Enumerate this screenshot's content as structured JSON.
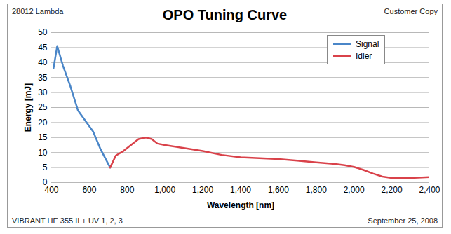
{
  "chart_data": {
    "type": "line",
    "title": "OPO Tuning Curve",
    "annotations": [
      "28012 Lambda",
      "Customer Copy",
      "VIBRANT HE 355 II + UV 1, 2, 3",
      "September 25, 2008"
    ],
    "x_label": "Wavelength [nm]",
    "y_label": "Energy [mJ]",
    "x": [
      410,
      430,
      460,
      500,
      540,
      580,
      620,
      660,
      710,
      740,
      780,
      820,
      860,
      900,
      930,
      960,
      1000,
      1100,
      1200,
      1300,
      1400,
      1500,
      1600,
      1700,
      1800,
      1900,
      1950,
      2000,
      2050,
      2100,
      2150,
      2200,
      2300,
      2400
    ],
    "series": [
      {
        "name": "Signal",
        "color": "#4a86c8",
        "values": [
          38,
          45.5,
          39,
          32,
          24,
          20.5,
          17,
          11,
          5,
          null,
          null,
          null,
          null,
          null,
          null,
          null,
          null,
          null,
          null,
          null,
          null,
          null,
          null,
          null,
          null,
          null,
          null,
          null,
          null,
          null,
          null,
          null,
          null,
          null
        ]
      },
      {
        "name": "Idler",
        "color": "#d9424a",
        "values": [
          null,
          null,
          null,
          null,
          null,
          null,
          null,
          null,
          5,
          9,
          10.5,
          12.5,
          14.5,
          15,
          14.5,
          13,
          12.5,
          11.5,
          10.5,
          9.2,
          8.4,
          8.1,
          7.8,
          7.3,
          6.7,
          6.2,
          5.8,
          5.2,
          4.2,
          3,
          2,
          1.5,
          1.5,
          1.8
        ]
      }
    ],
    "xlim": [
      400,
      2400
    ],
    "xticks": [
      400,
      600,
      800,
      1000,
      1200,
      1400,
      1600,
      1800,
      2000,
      2200,
      2400
    ],
    "ylim": [
      0,
      50
    ],
    "yticks": [
      0,
      5,
      10,
      15,
      20,
      25,
      30,
      35,
      40,
      45,
      50
    ],
    "grid": true,
    "legend": "top-right"
  }
}
